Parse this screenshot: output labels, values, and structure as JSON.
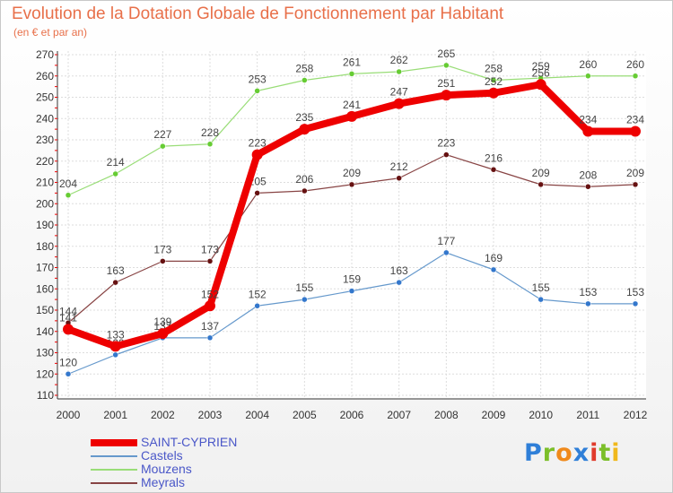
{
  "title": "Evolution de la Dotation Globale de Fonctionnement par Habitant",
  "subtitle": "(en € et par an)",
  "logo_letters": [
    {
      "ch": "P",
      "color": "#2f7fd8"
    },
    {
      "ch": "r",
      "color": "#7cbf2a"
    },
    {
      "ch": "o",
      "color": "#f08a1c"
    },
    {
      "ch": "x",
      "color": "#2f7fd8"
    },
    {
      "ch": "i",
      "color": "#e03b2c"
    },
    {
      "ch": "t",
      "color": "#7cbf2a"
    },
    {
      "ch": "i",
      "color": "#f0b81c"
    }
  ],
  "chart_data": {
    "type": "line",
    "title": "Evolution de la Dotation Globale de Fonctionnement par Habitant",
    "subtitle": "(en € et par an)",
    "categories": [
      "2000",
      "2001",
      "2002",
      "2003",
      "2004",
      "2005",
      "2006",
      "2007",
      "2008",
      "2009",
      "2010",
      "2011",
      "2012"
    ],
    "ylim": [
      110,
      270
    ],
    "yticks": [
      110,
      120,
      130,
      140,
      150,
      160,
      170,
      180,
      190,
      200,
      210,
      220,
      230,
      240,
      250,
      260,
      270
    ],
    "grid": true,
    "legend_position": "bottom-left",
    "series": [
      {
        "name": "Mouzens",
        "color": "#99dd77",
        "marker": "#66cc33",
        "width": 1.2,
        "values": [
          204,
          214,
          227,
          228,
          253,
          258,
          261,
          262,
          265,
          258,
          259,
          260,
          260
        ]
      },
      {
        "name": "Meyrals",
        "color": "#884444",
        "marker": "#661111",
        "width": 1.2,
        "values": [
          144,
          163,
          173,
          173,
          205,
          206,
          209,
          212,
          223,
          216,
          209,
          208,
          209
        ]
      },
      {
        "name": "Castels",
        "color": "#6699cc",
        "marker": "#3377cc",
        "width": 1.2,
        "values": [
          120,
          129,
          137,
          137,
          152,
          155,
          159,
          163,
          177,
          169,
          155,
          153,
          153
        ]
      },
      {
        "name": "SAINT-CYPRIEN",
        "color": "#ee0000",
        "marker": "#ee0000",
        "width": 8,
        "values": [
          141,
          133,
          139,
          152,
          223,
          235,
          241,
          247,
          251,
          252,
          256,
          234,
          234
        ]
      }
    ],
    "legend_order": [
      "SAINT-CYPRIEN",
      "Castels",
      "Mouzens",
      "Meyrals"
    ]
  }
}
